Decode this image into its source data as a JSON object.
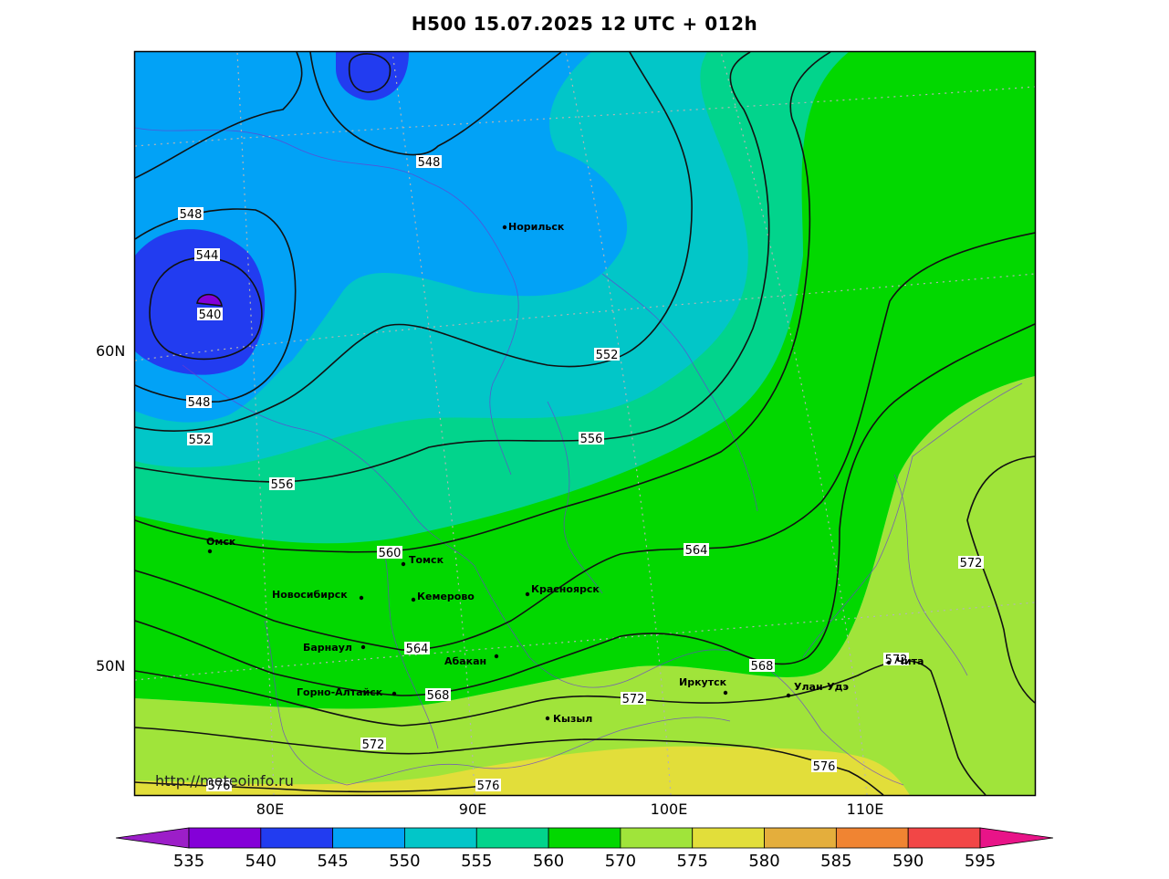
{
  "title": "H500  15.07.2025 12 UTC + 012h",
  "watermark": "http://meteoinfo.ru",
  "lat_labels": [
    "60N",
    "50N"
  ],
  "lon_labels": [
    "80E",
    "90E",
    "100E",
    "110E"
  ],
  "colorbar": {
    "ticks": [
      "535",
      "540",
      "545",
      "550",
      "555",
      "560",
      "570",
      "575",
      "580",
      "585",
      "590",
      "595"
    ],
    "colors": [
      "#8400d8",
      "#223cf0",
      "#02a2f6",
      "#02c6c8",
      "#02d48c",
      "#02d800",
      "#a0e43a",
      "#e2de3a",
      "#e4ae3c",
      "#f08432",
      "#f24646"
    ],
    "under_color": "#9c1ec8",
    "over_color": "#e81488"
  },
  "cities": [
    {
      "name": "Норильск"
    },
    {
      "name": "Омск"
    },
    {
      "name": "Томск"
    },
    {
      "name": "Новосибирск"
    },
    {
      "name": "Кемерово"
    },
    {
      "name": "Красноярск"
    },
    {
      "name": "Барнаул"
    },
    {
      "name": "Абакан"
    },
    {
      "name": "Горно-Алтайск"
    },
    {
      "name": "Иркутск"
    },
    {
      "name": "Улан-Удэ"
    },
    {
      "name": "Кызыл"
    },
    {
      "name": "Чита"
    }
  ],
  "contour_labels": [
    "548",
    "548",
    "544",
    "540",
    "548",
    "552",
    "556",
    "552",
    "556",
    "560",
    "564",
    "564",
    "568",
    "568",
    "572",
    "572",
    "572",
    "576",
    "576",
    "576",
    "572"
  ]
}
